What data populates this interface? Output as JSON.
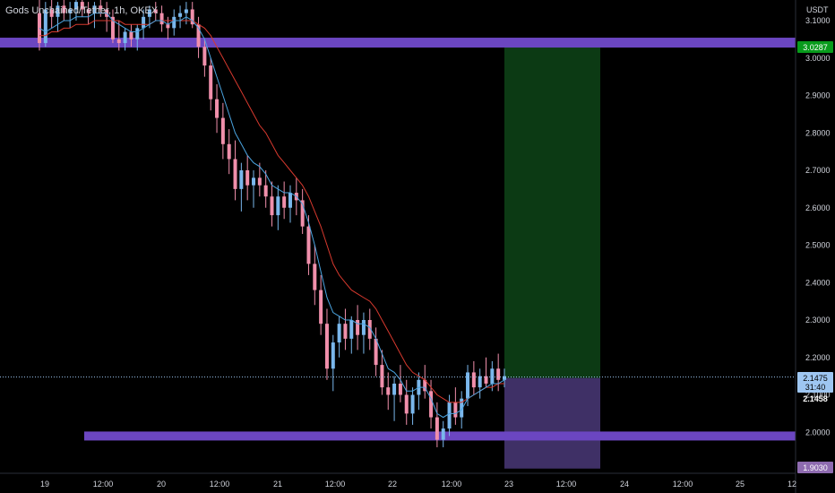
{
  "header": {
    "pair": "Gods Unchained/Tether",
    "interval": "1h",
    "exchange": "OKEX"
  },
  "price_axis": {
    "currency": "USDT",
    "badges": {
      "target": "3.0287",
      "current": "2.1475",
      "countdown": "31:40",
      "secondary": "2.1458",
      "stop": "1.9030"
    }
  },
  "colors": {
    "background": "#000000",
    "up": "#7ab7ec",
    "down": "#f08fab",
    "ema_fast": "#4aa4e0",
    "ema_slow": "#d7392e",
    "zone": "#6b46c1",
    "profit_zone": "#0c3a14",
    "loss_zone": "#4a3878",
    "target_badge": "#089b1c",
    "current_badge": "#9ec6f1",
    "stop_badge": "#8e6bb0"
  },
  "chart_data": {
    "type": "candlestick",
    "title": "Gods Unchained/Tether, 1h, OKEX",
    "ylabel": "USDT",
    "ylim": [
      1.88,
      3.16
    ],
    "y_ticks": [
      "3.1000",
      "3.0000",
      "2.9000",
      "2.8000",
      "2.7000",
      "2.6000",
      "2.5000",
      "2.4000",
      "2.3000",
      "2.2000",
      "2.1000",
      "2.0000"
    ],
    "x_ticks": [
      "19",
      "12:00",
      "20",
      "12:00",
      "21",
      "12:00",
      "22",
      "12:00",
      "23",
      "12:00",
      "24",
      "12:00",
      "25",
      "12"
    ],
    "horizontal_zones": [
      {
        "name": "resistance",
        "level": 3.04
      },
      {
        "name": "support",
        "level": 1.99
      }
    ],
    "position": {
      "type": "long",
      "entry": 2.145,
      "target": 3.0287,
      "stop": 1.903
    },
    "ohlc": [
      [
        3.12,
        3.16,
        3.02,
        3.04
      ],
      [
        3.04,
        3.15,
        3.03,
        3.13
      ],
      [
        3.13,
        3.16,
        3.08,
        3.11
      ],
      [
        3.11,
        3.15,
        3.07,
        3.14
      ],
      [
        3.14,
        3.16,
        3.1,
        3.12
      ],
      [
        3.12,
        3.15,
        3.08,
        3.13
      ],
      [
        3.13,
        3.16,
        3.1,
        3.15
      ],
      [
        3.15,
        3.16,
        3.11,
        3.13
      ],
      [
        3.13,
        3.15,
        3.09,
        3.12
      ],
      [
        3.12,
        3.15,
        3.08,
        3.14
      ],
      [
        3.14,
        3.16,
        3.11,
        3.13
      ],
      [
        3.13,
        3.15,
        3.07,
        3.11
      ],
      [
        3.11,
        3.13,
        3.04,
        3.05
      ],
      [
        3.05,
        3.1,
        3.02,
        3.04
      ],
      [
        3.04,
        3.08,
        3.02,
        3.07
      ],
      [
        3.07,
        3.09,
        3.03,
        3.05
      ],
      [
        3.05,
        3.09,
        3.02,
        3.08
      ],
      [
        3.08,
        3.13,
        3.05,
        3.11
      ],
      [
        3.11,
        3.14,
        3.08,
        3.13
      ],
      [
        3.13,
        3.15,
        3.1,
        3.12
      ],
      [
        3.12,
        3.14,
        3.07,
        3.09
      ],
      [
        3.09,
        3.11,
        3.05,
        3.08
      ],
      [
        3.08,
        3.13,
        3.06,
        3.11
      ],
      [
        3.11,
        3.14,
        3.08,
        3.12
      ],
      [
        3.12,
        3.15,
        3.09,
        3.13
      ],
      [
        3.13,
        3.15,
        3.08,
        3.09
      ],
      [
        3.09,
        3.11,
        3.0,
        3.03
      ],
      [
        3.03,
        3.05,
        2.95,
        2.98
      ],
      [
        2.98,
        3.0,
        2.86,
        2.89
      ],
      [
        2.89,
        2.93,
        2.8,
        2.84
      ],
      [
        2.84,
        2.88,
        2.73,
        2.77
      ],
      [
        2.77,
        2.81,
        2.69,
        2.73
      ],
      [
        2.73,
        2.78,
        2.62,
        2.65
      ],
      [
        2.65,
        2.72,
        2.59,
        2.7
      ],
      [
        2.7,
        2.74,
        2.62,
        2.66
      ],
      [
        2.66,
        2.7,
        2.6,
        2.68
      ],
      [
        2.68,
        2.72,
        2.63,
        2.66
      ],
      [
        2.66,
        2.7,
        2.6,
        2.63
      ],
      [
        2.63,
        2.67,
        2.55,
        2.58
      ],
      [
        2.58,
        2.66,
        2.54,
        2.63
      ],
      [
        2.63,
        2.67,
        2.57,
        2.6
      ],
      [
        2.6,
        2.66,
        2.56,
        2.64
      ],
      [
        2.64,
        2.68,
        2.58,
        2.62
      ],
      [
        2.62,
        2.65,
        2.53,
        2.55
      ],
      [
        2.55,
        2.58,
        2.42,
        2.45
      ],
      [
        2.45,
        2.5,
        2.34,
        2.38
      ],
      [
        2.38,
        2.42,
        2.26,
        2.29
      ],
      [
        2.29,
        2.33,
        2.14,
        2.17
      ],
      [
        2.17,
        2.26,
        2.11,
        2.24
      ],
      [
        2.24,
        2.31,
        2.2,
        2.29
      ],
      [
        2.29,
        2.33,
        2.22,
        2.25
      ],
      [
        2.25,
        2.31,
        2.21,
        2.3
      ],
      [
        2.3,
        2.34,
        2.22,
        2.26
      ],
      [
        2.26,
        2.32,
        2.21,
        2.3
      ],
      [
        2.3,
        2.33,
        2.22,
        2.25
      ],
      [
        2.25,
        2.28,
        2.15,
        2.18
      ],
      [
        2.18,
        2.22,
        2.1,
        2.12
      ],
      [
        2.12,
        2.16,
        2.06,
        2.1
      ],
      [
        2.1,
        2.15,
        2.03,
        2.13
      ],
      [
        2.13,
        2.18,
        2.08,
        2.1
      ],
      [
        2.1,
        2.14,
        2.02,
        2.05
      ],
      [
        2.05,
        2.12,
        2.02,
        2.1
      ],
      [
        2.1,
        2.16,
        2.06,
        2.14
      ],
      [
        2.14,
        2.18,
        2.09,
        2.11
      ],
      [
        2.11,
        2.14,
        2.01,
        2.04
      ],
      [
        2.04,
        2.08,
        1.96,
        1.98
      ],
      [
        1.98,
        2.03,
        1.96,
        2.01
      ],
      [
        2.01,
        2.1,
        1.99,
        2.08
      ],
      [
        2.08,
        2.12,
        2.02,
        2.04
      ],
      [
        2.04,
        2.11,
        2.01,
        2.09
      ],
      [
        2.09,
        2.18,
        2.07,
        2.16
      ],
      [
        2.16,
        2.19,
        2.1,
        2.12
      ],
      [
        2.12,
        2.17,
        2.09,
        2.15
      ],
      [
        2.15,
        2.2,
        2.12,
        2.13
      ],
      [
        2.13,
        2.19,
        2.11,
        2.17
      ],
      [
        2.17,
        2.21,
        2.11,
        2.14
      ],
      [
        2.14,
        2.17,
        2.12,
        2.15
      ]
    ],
    "ema_fast": [
      3.08,
      3.07,
      3.08,
      3.09,
      3.1,
      3.1,
      3.11,
      3.11,
      3.11,
      3.12,
      3.12,
      3.12,
      3.1,
      3.09,
      3.08,
      3.07,
      3.07,
      3.08,
      3.09,
      3.1,
      3.1,
      3.09,
      3.1,
      3.1,
      3.11,
      3.1,
      3.08,
      3.05,
      3.0,
      2.95,
      2.9,
      2.85,
      2.8,
      2.77,
      2.74,
      2.72,
      2.71,
      2.69,
      2.66,
      2.65,
      2.64,
      2.64,
      2.63,
      2.61,
      2.56,
      2.5,
      2.43,
      2.36,
      2.32,
      2.31,
      2.3,
      2.3,
      2.29,
      2.29,
      2.28,
      2.25,
      2.21,
      2.17,
      2.16,
      2.14,
      2.11,
      2.11,
      2.12,
      2.12,
      2.09,
      2.05,
      2.04,
      2.05,
      2.05,
      2.06,
      2.09,
      2.1,
      2.11,
      2.12,
      2.13,
      2.13,
      2.14
    ],
    "ema_slow": [
      3.06,
      3.06,
      3.07,
      3.07,
      3.08,
      3.08,
      3.09,
      3.09,
      3.09,
      3.1,
      3.1,
      3.1,
      3.1,
      3.1,
      3.09,
      3.09,
      3.09,
      3.09,
      3.09,
      3.1,
      3.1,
      3.1,
      3.1,
      3.1,
      3.1,
      3.1,
      3.09,
      3.08,
      3.06,
      3.03,
      3.0,
      2.97,
      2.94,
      2.91,
      2.88,
      2.85,
      2.82,
      2.8,
      2.77,
      2.74,
      2.72,
      2.7,
      2.68,
      2.66,
      2.63,
      2.59,
      2.55,
      2.5,
      2.45,
      2.42,
      2.4,
      2.38,
      2.37,
      2.36,
      2.35,
      2.33,
      2.3,
      2.27,
      2.24,
      2.21,
      2.18,
      2.16,
      2.15,
      2.14,
      2.12,
      2.1,
      2.09,
      2.08,
      2.08,
      2.08,
      2.09,
      2.1,
      2.11,
      2.12,
      2.12,
      2.13,
      2.13
    ]
  }
}
